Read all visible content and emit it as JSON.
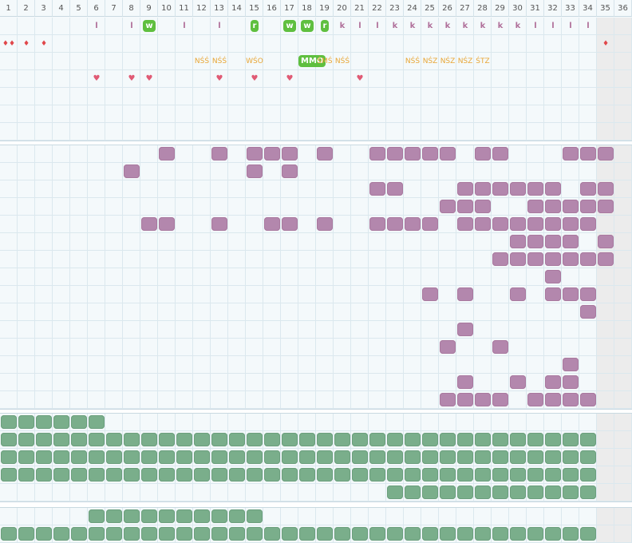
{
  "columns": [
    "1",
    "2",
    "3",
    "4",
    "5",
    "6",
    "7",
    "8",
    "9",
    "10",
    "11",
    "12",
    "13",
    "14",
    "15",
    "16",
    "17",
    "18",
    "19",
    "20",
    "21",
    "22",
    "23",
    "24",
    "25",
    "26",
    "27",
    "28",
    "29",
    "30",
    "31",
    "32",
    "33",
    "34",
    "35",
    "36"
  ],
  "row1_markers": [
    {
      "col": 6,
      "text": "l",
      "kind": "l"
    },
    {
      "col": 8,
      "text": "l",
      "kind": "l"
    },
    {
      "col": 9,
      "text": "w",
      "kind": "gbox"
    },
    {
      "col": 11,
      "text": "l",
      "kind": "l"
    },
    {
      "col": 13,
      "text": "l",
      "kind": "l"
    },
    {
      "col": 15,
      "text": "r",
      "kind": "gbox"
    },
    {
      "col": 17,
      "text": "w",
      "kind": "gbox"
    },
    {
      "col": 18,
      "text": "w",
      "kind": "gbox"
    },
    {
      "col": 19,
      "text": "r",
      "kind": "gbox"
    },
    {
      "col": 20,
      "text": "k",
      "kind": "k"
    },
    {
      "col": 21,
      "text": "l",
      "kind": "l"
    },
    {
      "col": 22,
      "text": "l",
      "kind": "l"
    },
    {
      "col": 23,
      "text": "k",
      "kind": "k"
    },
    {
      "col": 24,
      "text": "k",
      "kind": "k"
    },
    {
      "col": 25,
      "text": "k",
      "kind": "k"
    },
    {
      "col": 26,
      "text": "k",
      "kind": "k"
    },
    {
      "col": 27,
      "text": "k",
      "kind": "k"
    },
    {
      "col": 28,
      "text": "k",
      "kind": "k"
    },
    {
      "col": 29,
      "text": "k",
      "kind": "k"
    },
    {
      "col": 30,
      "text": "k",
      "kind": "k"
    },
    {
      "col": 31,
      "text": "l",
      "kind": "l"
    },
    {
      "col": 32,
      "text": "l",
      "kind": "l"
    },
    {
      "col": 33,
      "text": "l",
      "kind": "l"
    },
    {
      "col": 34,
      "text": "l",
      "kind": "l"
    }
  ],
  "row2_drops": [
    {
      "col": 1,
      "text": "♦♦"
    },
    {
      "col": 2,
      "text": "♦"
    },
    {
      "col": 3,
      "text": "♦"
    },
    {
      "col": 35,
      "text": "♦"
    }
  ],
  "row3_labels": [
    {
      "col": 12,
      "text": "NŚŚ",
      "kind": "lab"
    },
    {
      "col": 13,
      "text": "NŚŚ",
      "kind": "lab"
    },
    {
      "col": 15,
      "text": "WŚO",
      "kind": "lab"
    },
    {
      "col": 18,
      "text": "MMO",
      "kind": "gbox"
    },
    {
      "col": 19,
      "text": "ŚMŚ",
      "kind": "lab"
    },
    {
      "col": 20,
      "text": "NŚŚ",
      "kind": "lab"
    },
    {
      "col": 24,
      "text": "NŚŚ",
      "kind": "lab"
    },
    {
      "col": 25,
      "text": "NŚZ",
      "kind": "lab"
    },
    {
      "col": 26,
      "text": "NŚZ",
      "kind": "lab"
    },
    {
      "col": 27,
      "text": "NŚZ",
      "kind": "lab"
    },
    {
      "col": 28,
      "text": "ŚTZ",
      "kind": "lab"
    }
  ],
  "row4_hearts": [
    6,
    8,
    9,
    13,
    15,
    17,
    21
  ],
  "purple_rows": [
    [
      10,
      13,
      15,
      16,
      17,
      19,
      22,
      23,
      24,
      25,
      26,
      28,
      29,
      33,
      34,
      35
    ],
    [
      8,
      15,
      17
    ],
    [
      22,
      23,
      27,
      28,
      29,
      30,
      31,
      32,
      34,
      35
    ],
    [
      26,
      27,
      28,
      31,
      32,
      33,
      34,
      35
    ],
    [
      9,
      10,
      13,
      16,
      17,
      19,
      22,
      23,
      24,
      25,
      27,
      28,
      29,
      30,
      31,
      32,
      33,
      34
    ],
    [
      30,
      31,
      32,
      33,
      35
    ],
    [
      29,
      30,
      31,
      32,
      33,
      34,
      35
    ],
    [
      32
    ],
    [
      25,
      27,
      30,
      32,
      33,
      34
    ],
    [
      34
    ],
    [
      27
    ],
    [
      26,
      29
    ],
    [
      33
    ],
    [
      27,
      30,
      32,
      33
    ],
    [
      26,
      27,
      28,
      29,
      31,
      32,
      33,
      34
    ]
  ],
  "green_rows_a": [
    [
      1,
      2,
      3,
      4,
      5,
      6
    ],
    [
      1,
      2,
      3,
      4,
      5,
      6,
      7,
      8,
      9,
      10,
      11,
      12,
      13,
      14,
      15,
      16,
      17,
      18,
      19,
      20,
      21,
      22,
      23,
      24,
      25,
      26,
      27,
      28,
      29,
      30,
      31,
      32,
      33,
      34
    ],
    [
      1,
      2,
      3,
      4,
      5,
      6,
      7,
      8,
      9,
      10,
      11,
      12,
      13,
      14,
      15,
      16,
      17,
      18,
      19,
      20,
      21,
      22,
      23,
      24,
      25,
      26,
      27,
      28,
      29,
      30,
      31,
      32,
      33,
      34
    ],
    [
      1,
      2,
      3,
      4,
      5,
      6,
      7,
      8,
      9,
      10,
      11,
      12,
      13,
      14,
      15,
      16,
      17,
      18,
      19,
      20,
      21,
      22,
      23,
      24,
      25,
      26,
      27,
      28,
      29,
      30,
      31,
      32,
      33,
      34
    ],
    [
      23,
      24,
      25,
      26,
      27,
      28,
      29,
      30,
      31,
      32,
      33,
      34
    ]
  ],
  "green_rows_b": [
    [
      6,
      7,
      8,
      9,
      10,
      11,
      12,
      13,
      14,
      15
    ],
    [
      1,
      2,
      3,
      4,
      5,
      6,
      7,
      8,
      9,
      10,
      11,
      12,
      13,
      14,
      15,
      16,
      17,
      18,
      19,
      20,
      21,
      22,
      23,
      24,
      25,
      26,
      27,
      28,
      29,
      30,
      31,
      32,
      33,
      34
    ]
  ],
  "colors": {
    "purple": "#b387ad",
    "green": "#7aae8b",
    "marker_green": "#5fbf3f",
    "label_orange": "#e8a636",
    "heart": "#e05a74",
    "drop": "#e0474a",
    "accent_l": "#b0709a"
  }
}
